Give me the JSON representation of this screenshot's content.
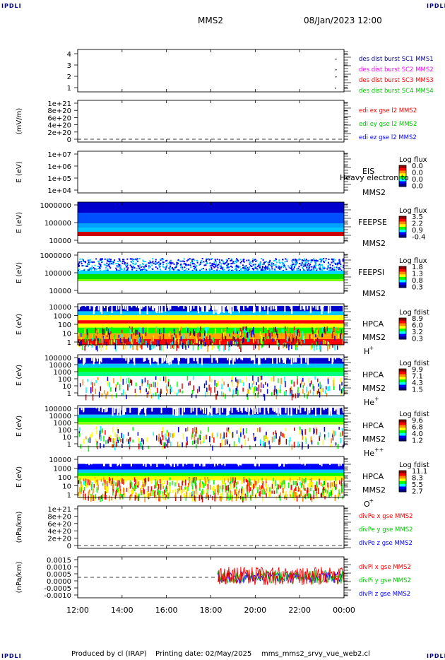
{
  "header": {
    "corner_label": "IPDLI",
    "spacecraft": "MMS2",
    "date_time": "08/Jan/2023 12:00"
  },
  "footer": {
    "produced_by": "Produced by cl (IRAP)",
    "printing_date": "Printing date: 02/May/2025",
    "script_name": "mms_mms2_srvy_vue_web2.cl"
  },
  "colors": {
    "series_red": "#ff0000",
    "series_green": "#00c800",
    "series_blue": "#0000ff",
    "series_magenta": "#ff00ff",
    "navy": "#00008b",
    "colorscale": [
      "#8b0000",
      "#ff0000",
      "#ff8c00",
      "#ffff00",
      "#00ff00",
      "#00ffff",
      "#0000ff",
      "#00008b"
    ]
  },
  "chart_data": {
    "type": "heatmap",
    "x_ticks": [
      "12:00",
      "14:00",
      "16:00",
      "18:00",
      "20:00",
      "22:00",
      "00:00"
    ],
    "x_range_hours": [
      12,
      24
    ],
    "panels": [
      {
        "kind": "line",
        "ylabel": "",
        "ticks": [
          "4",
          "3",
          "2",
          "1"
        ],
        "ylim": [
          0.5,
          4.5
        ],
        "legend": [
          {
            "label": "des dist burst SC1 MMS1",
            "color": "#00008b"
          },
          {
            "label": "des dist burst SC2 MMS2",
            "color": "#ff00ff"
          },
          {
            "label": "des dist burst SC3 MMS3",
            "color": "#ff0000"
          },
          {
            "label": "des dist burst SC4 MMS4",
            "color": "#00c800"
          }
        ]
      },
      {
        "kind": "line",
        "ylabel": "(mV/m)",
        "ticks": [
          "1e+21",
          "8e+20",
          "6e+20",
          "4e+20",
          "2e+20",
          "0"
        ],
        "ylim": [
          0,
          1e+21
        ],
        "legend": [
          {
            "label": "edi ex gse l2 MMS2",
            "color": "#ff0000"
          },
          {
            "label": "edi ey gse l2 MMS2",
            "color": "#00c800"
          },
          {
            "label": "edi ez gse l2 MMS2",
            "color": "#0000ff"
          }
        ]
      },
      {
        "kind": "spectrogram",
        "ylabel": "E (eV)",
        "ticks": [
          "1e+07",
          "1e+06",
          "1e+05",
          "1e+04"
        ],
        "ylim": [
          10000,
          10000000
        ],
        "side_labels": [
          "EIS",
          "MMS2"
        ],
        "overlay_text": "Heavy electron to",
        "cbar_title": "Log flux",
        "cbar_ticks": [
          "0.0",
          "0.0",
          "0.0",
          "0.0"
        ]
      },
      {
        "kind": "spectrogram",
        "ylabel": "E (eV)",
        "ticks": [
          "1000000",
          "100000",
          "10000"
        ],
        "ylim": [
          10000,
          1000000
        ],
        "side_labels": [
          "FEEPSE",
          "MMS2"
        ],
        "cbar_title": "Log flux",
        "cbar_ticks": [
          "3.5",
          "2.2",
          "0.9",
          "-0.4"
        ]
      },
      {
        "kind": "spectrogram",
        "ylabel": "E (eV)",
        "ticks": [
          "1000000",
          "100000",
          "10000"
        ],
        "ylim": [
          10000,
          1000000
        ],
        "side_labels": [
          "FEEPSI",
          "MMS2"
        ],
        "cbar_title": "Log flux",
        "cbar_ticks": [
          "1.8",
          "1.3",
          "0.8",
          "0.3"
        ]
      },
      {
        "kind": "spectrogram",
        "ylabel": "E (eV)",
        "ticks": [
          "10000",
          "1000",
          "100",
          "10",
          "1"
        ],
        "ylim": [
          1,
          20000
        ],
        "side_labels": [
          "HPCA",
          "MMS2"
        ],
        "species": "H",
        "charge": "+",
        "cbar_title": "Log fdist",
        "cbar_ticks": [
          "8.9",
          "6.0",
          "3.2",
          "0.3"
        ]
      },
      {
        "kind": "spectrogram",
        "ylabel": "E (eV)",
        "ticks": [
          "100000",
          "10000",
          "1000",
          "100",
          "10",
          "1"
        ],
        "ylim": [
          1,
          100000
        ],
        "side_labels": [
          "HPCA",
          "MMS2"
        ],
        "species": "He",
        "charge": "+",
        "cbar_title": "Log fdist",
        "cbar_ticks": [
          "9.9",
          "7.1",
          "4.3",
          "1.5"
        ]
      },
      {
        "kind": "spectrogram",
        "ylabel": "E (eV)",
        "ticks": [
          "100000",
          "10000",
          "1000",
          "100",
          "10",
          "1"
        ],
        "ylim": [
          1,
          100000
        ],
        "side_labels": [
          "HPCA",
          "MMS2"
        ],
        "species": "He",
        "charge": "++",
        "cbar_title": "Log fdist",
        "cbar_ticks": [
          "9.6",
          "6.8",
          "4.0",
          "1.2"
        ]
      },
      {
        "kind": "spectrogram",
        "ylabel": "E (eV)",
        "ticks": [
          "10000",
          "1000",
          "100",
          "10",
          "1"
        ],
        "ylim": [
          1,
          20000
        ],
        "side_labels": [
          "HPCA",
          "MMS2"
        ],
        "species": "O",
        "charge": "+",
        "cbar_title": "Log fdist",
        "cbar_ticks": [
          "11.1",
          "8.3",
          "5.5",
          "2.7"
        ]
      },
      {
        "kind": "line",
        "ylabel": "(nPa/km)",
        "ticks": [
          "1e+21",
          "8e+20",
          "6e+20",
          "4e+20",
          "2e+20",
          "0"
        ],
        "ylim": [
          0,
          1e+21
        ],
        "legend": [
          {
            "label": "divPe x gse MMS2",
            "color": "#ff0000"
          },
          {
            "label": "divPe y gse MMS2",
            "color": "#00c800"
          },
          {
            "label": "divPe z gse MMS2",
            "color": "#0000ff"
          }
        ]
      },
      {
        "kind": "line",
        "ylabel": "(nPa/km)",
        "ticks": [
          "0.0015",
          "0.0010",
          "0.0005",
          "0.0000",
          "-0.0005",
          "-0.0010"
        ],
        "ylim": [
          -0.00125,
          0.0015
        ],
        "data_start_hour": 18.3,
        "legend": [
          {
            "label": "divPi x gse MMS2",
            "color": "#ff0000"
          },
          {
            "label": "divPi y gse MMS2",
            "color": "#00c800"
          },
          {
            "label": "divPi z gse MMS2",
            "color": "#0000ff"
          }
        ]
      }
    ]
  }
}
